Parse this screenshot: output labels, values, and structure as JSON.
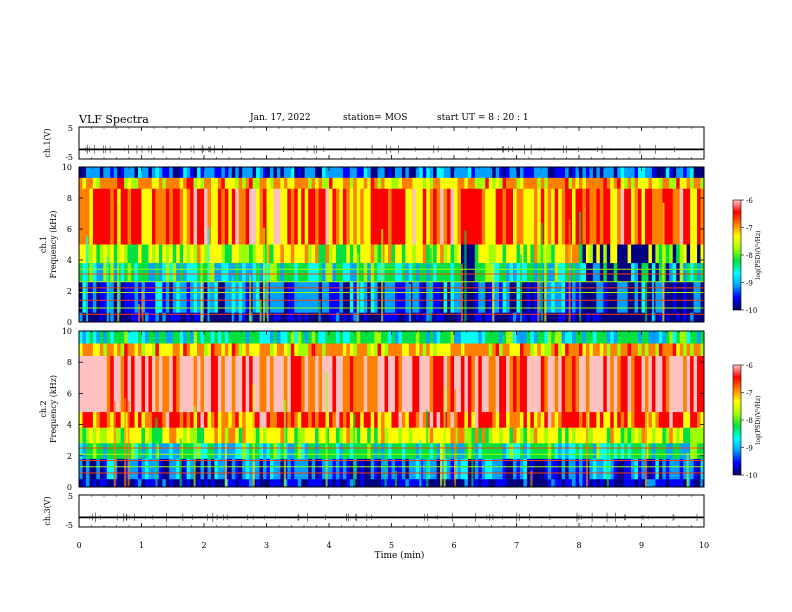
{
  "header": {
    "title": "VLF Spectra",
    "date": "Jan. 17, 2022",
    "station": "station= MOS",
    "start_label": "start  UT =",
    "start_time": "8 : 20 : 1"
  },
  "chart_data": [
    {
      "type": "line",
      "panel": "ch1-waveform",
      "ylabel": "ch.1(V)",
      "ylim": [
        -5,
        5
      ],
      "yticks": [
        "5",
        "-5"
      ],
      "x": [
        0,
        10
      ],
      "series": [
        {
          "values": [
            -2,
            -2
          ]
        }
      ]
    },
    {
      "type": "heatmap",
      "panel": "ch1-spectrogram",
      "ylabel": "ch.1\nFrequency (kHz)",
      "xlim": [
        0,
        10
      ],
      "ylim": [
        0,
        10
      ],
      "yticks": [
        "0",
        "2",
        "4",
        "6",
        "8",
        "10"
      ],
      "colorbar": {
        "label": "log(PSD)(V²/Hz)",
        "range": [
          -10,
          -6
        ],
        "ticks": [
          "-6",
          "-7",
          "-8",
          "-9",
          "-10"
        ]
      }
    },
    {
      "type": "heatmap",
      "panel": "ch2-spectrogram",
      "ylabel": "ch.2\nFrequency (kHz)",
      "xlim": [
        0,
        10
      ],
      "ylim": [
        0,
        10
      ],
      "yticks": [
        "0",
        "2",
        "4",
        "6",
        "8",
        "10"
      ],
      "colorbar": {
        "label": "log(PSD)(V²/Hz)",
        "range": [
          -10,
          -6
        ],
        "ticks": [
          "-6",
          "-7",
          "-8",
          "-9",
          "-10"
        ]
      }
    },
    {
      "type": "line",
      "panel": "ch3-waveform",
      "ylabel": "ch.3(V)",
      "ylim": [
        -5,
        5
      ],
      "yticks": [
        "5",
        "-5"
      ],
      "x": [
        0,
        10
      ],
      "series": [
        {
          "values": [
            -2,
            -2
          ]
        }
      ]
    }
  ],
  "xaxis": {
    "label": "Time  (min)",
    "ticks": [
      "0",
      "1",
      "2",
      "3",
      "4",
      "5",
      "6",
      "7",
      "8",
      "9",
      "10"
    ]
  },
  "colors": {
    "palette": [
      "#000080",
      "#0000ff",
      "#00a0ff",
      "#00ffff",
      "#00e040",
      "#a0ff00",
      "#ffff00",
      "#ff8000",
      "#ff0000",
      "#ffc0c0"
    ]
  }
}
